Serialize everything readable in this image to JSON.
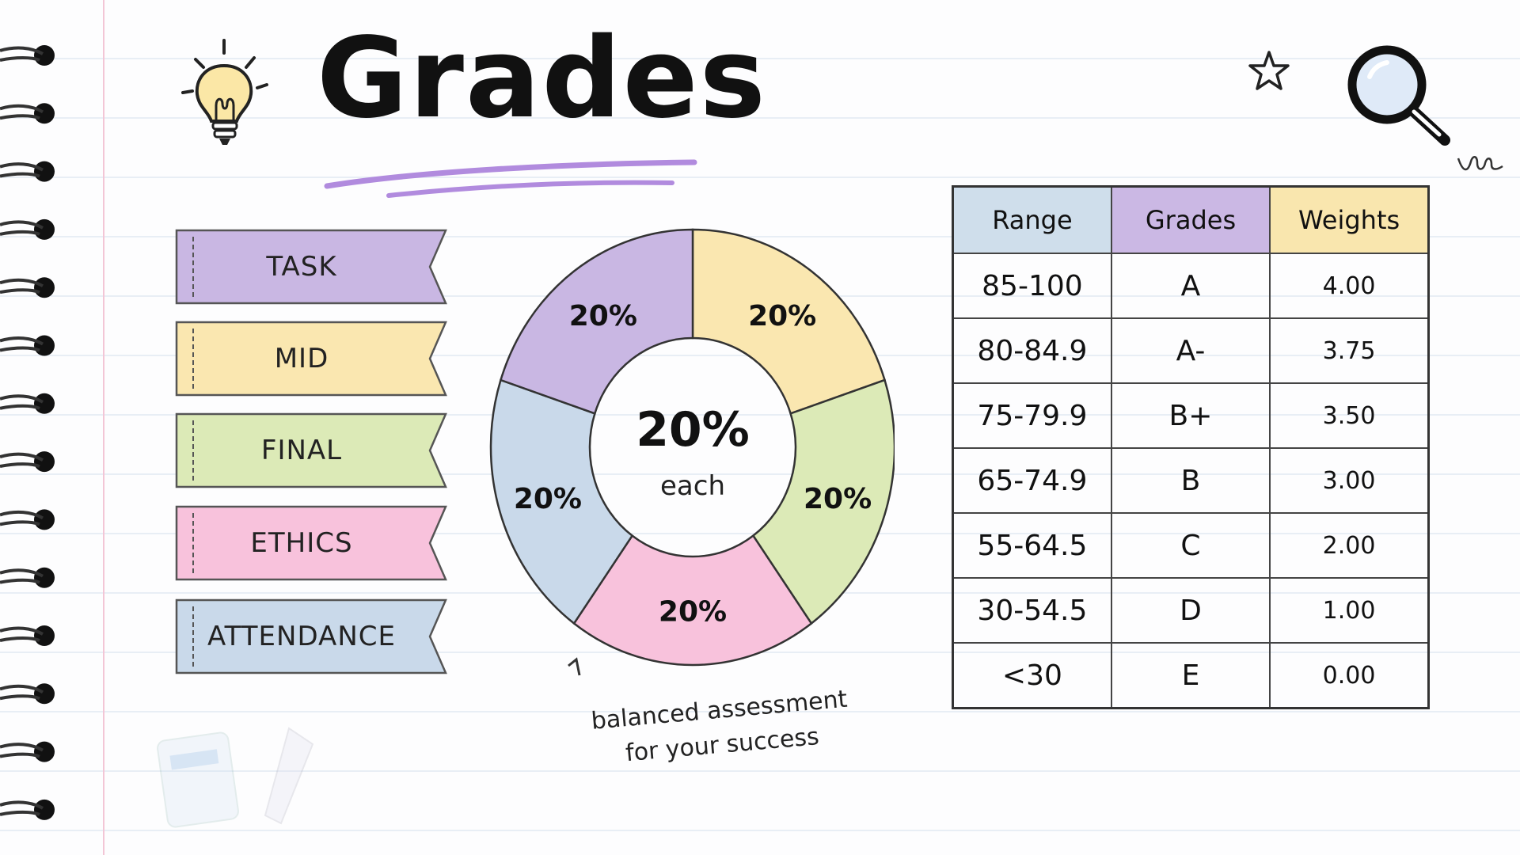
{
  "page": {
    "title": "Grades"
  },
  "components": [
    {
      "label": "TASK",
      "color": "#c9b7e3"
    },
    {
      "label": "MID",
      "color": "#fae7b0"
    },
    {
      "label": "FINAL",
      "color": "#dceab7"
    },
    {
      "label": "ETHICS",
      "color": "#f8c2dc"
    },
    {
      "label": "ATTENDANCE",
      "color": "#c9d9ea"
    }
  ],
  "chart_data": {
    "type": "pie",
    "categories": [
      "",
      "",
      "",
      "",
      ""
    ],
    "values": [
      20,
      20,
      20,
      20,
      20
    ],
    "labels": [
      "20%",
      "20%",
      "20%",
      "20%",
      "20%"
    ],
    "colors": [
      "#fae7b0",
      "#dceab7",
      "#f8c2dc",
      "#c9d9ea",
      "#c9b7e3"
    ],
    "center_value": "20%",
    "center_caption": "each"
  },
  "tagline": {
    "line1": "balanced assessment",
    "line2": "for your success"
  },
  "table": {
    "headers": [
      "Range",
      "Grades",
      "Weights"
    ],
    "header_colors": [
      "#cfdeeb",
      "#cbb8e4",
      "#f9e6ae"
    ],
    "rows": [
      [
        "85-100",
        "A",
        "4.00"
      ],
      [
        "80-84.9",
        "A-",
        "3.75"
      ],
      [
        "75-79.9",
        "B+",
        "3.50"
      ],
      [
        "65-74.9",
        "B",
        "3.00"
      ],
      [
        "55-64.5",
        "C",
        "2.00"
      ],
      [
        "30-54.5",
        "D",
        "1.00"
      ],
      [
        "<30",
        "E",
        "0.00"
      ]
    ]
  },
  "icons": [
    "lightbulb-icon",
    "star-icon",
    "magnifier-icon"
  ]
}
